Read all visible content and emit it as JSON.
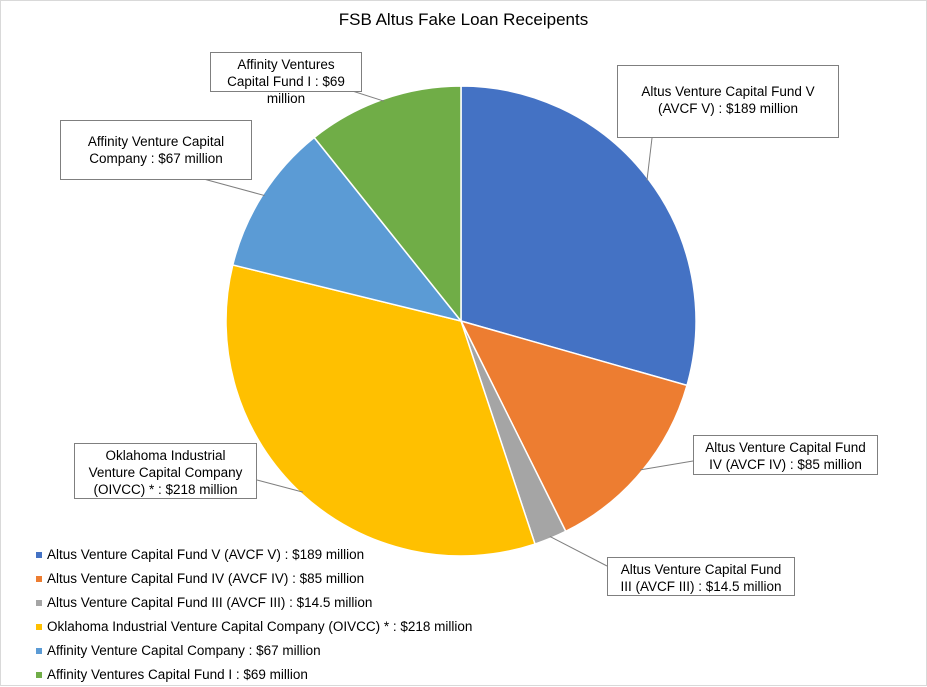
{
  "chart_data": {
    "type": "pie",
    "title": "FSB Altus Fake Loan Receipents",
    "slices": [
      {
        "label": "Altus Venture Capital Fund V (AVCF V) : $189 million",
        "value": 189,
        "color": "#4472c4"
      },
      {
        "label": "Altus Venture Capital Fund IV (AVCF IV) : $85 million",
        "value": 85,
        "color": "#ed7d31"
      },
      {
        "label": "Altus Venture Capital Fund III (AVCF III) : $14.5 million",
        "value": 14.5,
        "color": "#a5a5a5"
      },
      {
        "label": "Oklahoma Industrial Venture Capital Company (OIVCC) * : $218 million",
        "value": 218,
        "color": "#ffc000"
      },
      {
        "label": "Affinity Venture Capital Company : $67 million",
        "value": 67,
        "color": "#5b9bd5"
      },
      {
        "label": "Affinity Ventures Capital Fund I : $69 million",
        "value": 69,
        "color": "#70ad47"
      }
    ],
    "legend_position": "bottom-left"
  }
}
